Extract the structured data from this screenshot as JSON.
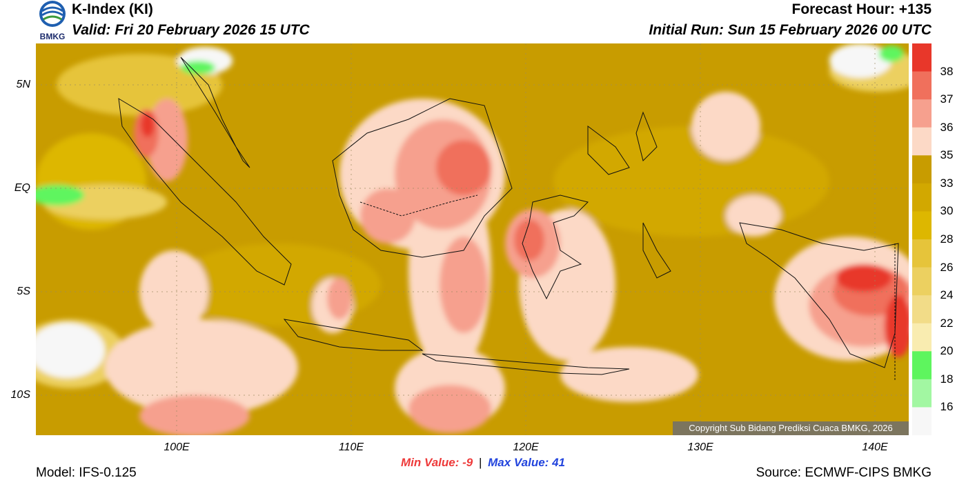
{
  "header": {
    "title": "K-Index (KI)",
    "valid": "Valid: Fri 20 February 2026 15 UTC",
    "forecast_hour": "Forecast Hour: +135",
    "initial_run": "Initial Run: Sun 15 February 2026 00 UTC",
    "logo_text": "BMKG"
  },
  "axes": {
    "lat_labels": [
      "5N",
      "EQ",
      "5S",
      "10S"
    ],
    "lon_labels": [
      "100E",
      "110E",
      "120E",
      "130E",
      "140E"
    ]
  },
  "colorbar": {
    "labels": [
      "38",
      "37",
      "36",
      "35",
      "33",
      "30",
      "28",
      "26",
      "24",
      "22",
      "20",
      "18",
      "16"
    ],
    "colors": [
      "#e8372a",
      "#f0705c",
      "#f6a08e",
      "#fcd9c6",
      "#c89c00",
      "#d2a800",
      "#ddb700",
      "#e6c43a",
      "#ecd060",
      "#f2dc88",
      "#f9ecb0",
      "#5ef55e",
      "#a2f7a2",
      "#f7f7f7"
    ]
  },
  "stats": {
    "min_label": "Min Value:",
    "min_value": "-9",
    "separator": "|",
    "max_label": "Max Value:",
    "max_value": "41"
  },
  "footer": {
    "model": "Model: IFS-0.125",
    "source": "Source: ECMWF-CIPS BMKG",
    "copyright": "Copyright Sub Bidang Prediksi Cuaca BMKG, 2026"
  }
}
